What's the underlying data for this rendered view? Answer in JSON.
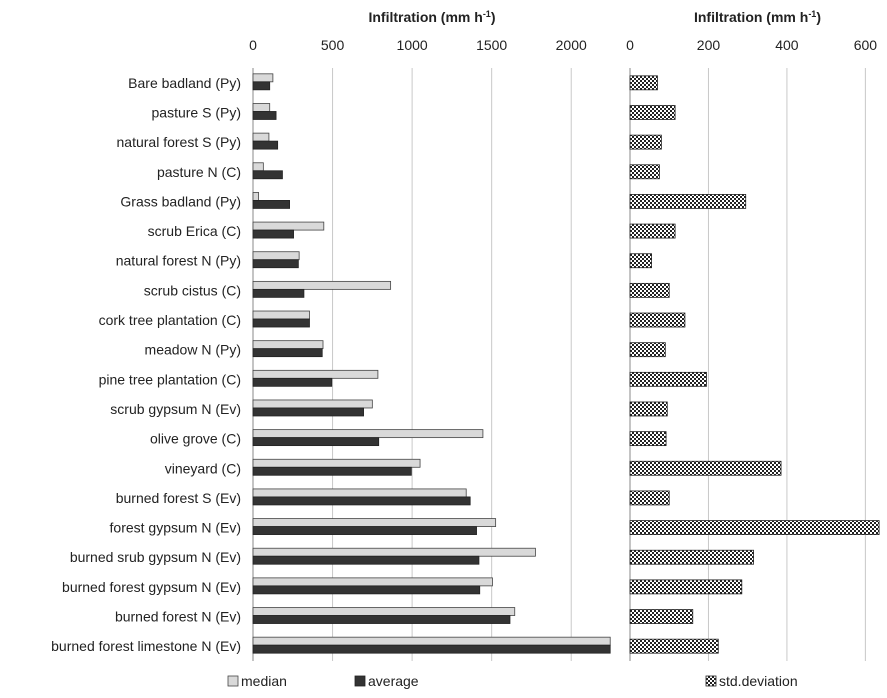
{
  "chart_data": [
    {
      "type": "bar",
      "orientation": "horizontal",
      "xlabel": "Infiltration (mm h",
      "xlabel_sup": "-1",
      "xlabel_close": ")",
      "xlim": [
        0,
        2250
      ],
      "xticks": [
        "0",
        "500",
        "1000",
        "1500",
        "2000"
      ],
      "grid": true,
      "categories": [
        "Bare badland (Py)",
        "pasture S (Py)",
        "natural forest S (Py)",
        "pasture N (C)",
        "Grass badland (Py)",
        "scrub Erica (C)",
        "natural forest N (Py)",
        "scrub cistus (C)",
        "cork tree plantation (C)",
        "meadow N (Py)",
        "pine tree plantation (C)",
        "scrub gypsum N (Ev)",
        "olive grove (C)",
        "vineyard (C)",
        "burned forest S (Ev)",
        "forest gypsum N (Ev)",
        "burned srub gypsum N (Ev)",
        "burned forest gypsum N (Ev)",
        "burned forest N (Ev)",
        "burned forest limestone N (Ev)"
      ],
      "series": [
        {
          "name": "median",
          "color": "#d9d9d9",
          "values": [
            125,
            105,
            100,
            65,
            35,
            445,
            290,
            865,
            355,
            440,
            785,
            750,
            1445,
            1050,
            1340,
            1525,
            1775,
            1505,
            1645,
            2245
          ]
        },
        {
          "name": "average",
          "color": "#333333",
          "values": [
            105,
            145,
            155,
            185,
            230,
            255,
            285,
            320,
            355,
            435,
            495,
            695,
            790,
            995,
            1365,
            1405,
            1420,
            1425,
            1615,
            2245
          ]
        }
      ],
      "legend_position": "bottom-left"
    },
    {
      "type": "bar",
      "orientation": "horizontal",
      "xlabel": "Infiltration (mm h",
      "xlabel_sup": "-1",
      "xlabel_close": ")",
      "xlim": [
        0,
        650
      ],
      "xticks": [
        "0",
        "200",
        "400",
        "600"
      ],
      "grid": true,
      "series": [
        {
          "name": "std.deviation",
          "pattern": "checker",
          "values": [
            70,
            115,
            80,
            75,
            295,
            115,
            55,
            100,
            140,
            90,
            195,
            95,
            92,
            385,
            100,
            635,
            315,
            285,
            160,
            225
          ]
        }
      ],
      "legend_position": "bottom-right"
    }
  ]
}
